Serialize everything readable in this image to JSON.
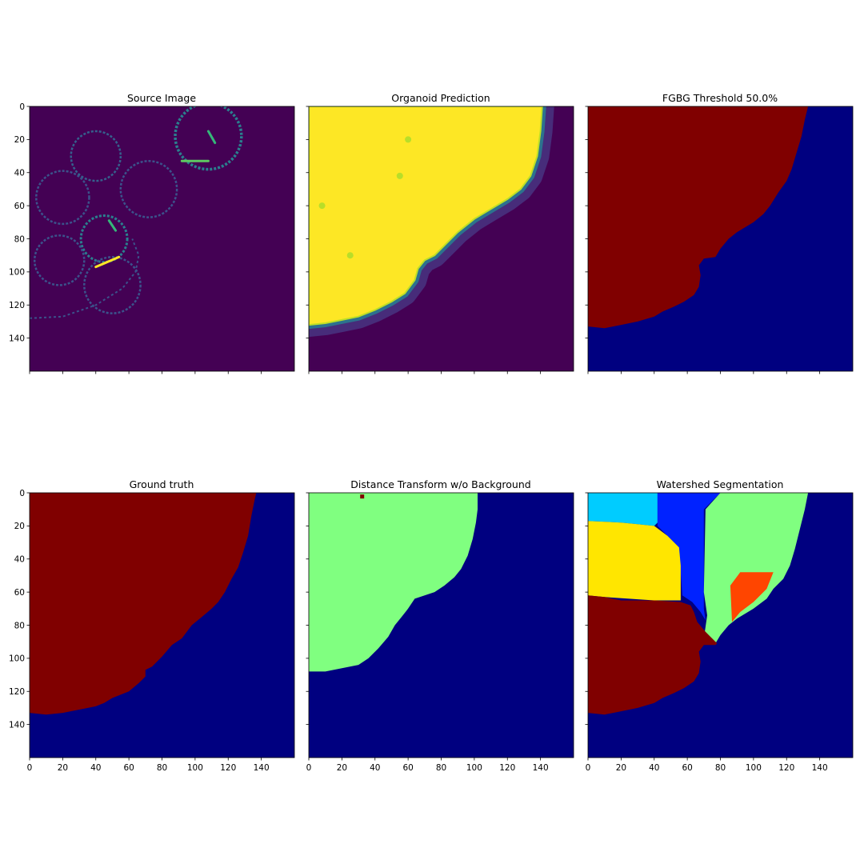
{
  "figure": {
    "panels": [
      {
        "title": "Source Image"
      },
      {
        "title": "Organoid Prediction"
      },
      {
        "title": "FGBG Threshold 50.0%"
      },
      {
        "title": "Ground truth"
      },
      {
        "title": "Distance Transform w/o Background"
      },
      {
        "title": "Watershed Segmentation"
      }
    ]
  },
  "chart_data": [
    {
      "type": "heatmap",
      "title": "Source Image",
      "colormap": "viridis",
      "xlim": [
        0,
        160
      ],
      "ylim": [
        160,
        0
      ],
      "yticks": [
        0,
        20,
        40,
        60,
        80,
        100,
        120,
        140
      ],
      "xticks": [
        0,
        20,
        40,
        60,
        80,
        100,
        120,
        140
      ],
      "ytick_labels_shown": true,
      "xtick_labels_shown": false,
      "description_values": {
        "background": 0.0,
        "cell_boundaries": 0.35,
        "bright_spots": 1.0
      }
    },
    {
      "type": "heatmap",
      "title": "Organoid Prediction",
      "colormap": "viridis",
      "xlim": [
        0,
        160
      ],
      "ylim": [
        160,
        0
      ],
      "yticks": [
        0,
        20,
        40,
        60,
        80,
        100,
        120,
        140
      ],
      "xticks": [
        0,
        20,
        40,
        60,
        80,
        100,
        120,
        140
      ],
      "ytick_labels_shown": false,
      "xtick_labels_shown": false,
      "foreground_boundary": [
        [
          0,
          132
        ],
        [
          10,
          131
        ],
        [
          20,
          129
        ],
        [
          30,
          127
        ],
        [
          40,
          123
        ],
        [
          50,
          118
        ],
        [
          58,
          113
        ],
        [
          64,
          105
        ],
        [
          66,
          98
        ],
        [
          70,
          93
        ],
        [
          76,
          90
        ],
        [
          84,
          82
        ],
        [
          90,
          76
        ],
        [
          100,
          68
        ],
        [
          110,
          62
        ],
        [
          120,
          56
        ],
        [
          128,
          50
        ],
        [
          134,
          42
        ],
        [
          138,
          30
        ],
        [
          140,
          15
        ],
        [
          141,
          0
        ]
      ]
    },
    {
      "type": "heatmap",
      "title": "FGBG Threshold 50.0%",
      "colormap": "jet",
      "xlim": [
        0,
        160
      ],
      "ylim": [
        160,
        0
      ],
      "yticks": [
        0,
        20,
        40,
        60,
        80,
        100,
        120,
        140
      ],
      "xticks": [
        0,
        20,
        40,
        60,
        80,
        100,
        120,
        140
      ],
      "ytick_labels_shown": false,
      "xtick_labels_shown": false,
      "foreground_boundary": [
        [
          0,
          133
        ],
        [
          10,
          134
        ],
        [
          20,
          132
        ],
        [
          30,
          130
        ],
        [
          40,
          127
        ],
        [
          45,
          124
        ],
        [
          52,
          121
        ],
        [
          58,
          118
        ],
        [
          64,
          114
        ],
        [
          67,
          109
        ],
        [
          68,
          102
        ],
        [
          67,
          96
        ],
        [
          70,
          92
        ],
        [
          77,
          91
        ],
        [
          80,
          86
        ],
        [
          85,
          80
        ],
        [
          90,
          76
        ],
        [
          100,
          70
        ],
        [
          106,
          65
        ],
        [
          110,
          60
        ],
        [
          115,
          52
        ],
        [
          120,
          45
        ],
        [
          123,
          38
        ],
        [
          126,
          28
        ],
        [
          129,
          18
        ],
        [
          131,
          8
        ],
        [
          133,
          0
        ]
      ]
    },
    {
      "type": "heatmap",
      "title": "Ground truth",
      "colormap": "jet",
      "xlim": [
        0,
        160
      ],
      "ylim": [
        160,
        0
      ],
      "yticks": [
        0,
        20,
        40,
        60,
        80,
        100,
        120,
        140
      ],
      "xticks": [
        0,
        20,
        40,
        60,
        80,
        100,
        120,
        140
      ],
      "ytick_labels_shown": true,
      "xtick_labels_shown": true,
      "foreground_boundary": [
        [
          0,
          133
        ],
        [
          10,
          134
        ],
        [
          20,
          133
        ],
        [
          30,
          131
        ],
        [
          40,
          129
        ],
        [
          45,
          127
        ],
        [
          50,
          124
        ],
        [
          55,
          122
        ],
        [
          60,
          120
        ],
        [
          66,
          115
        ],
        [
          70,
          111
        ],
        [
          70,
          107
        ],
        [
          74,
          105
        ],
        [
          80,
          99
        ],
        [
          86,
          92
        ],
        [
          92,
          88
        ],
        [
          98,
          80
        ],
        [
          104,
          75
        ],
        [
          110,
          70
        ],
        [
          114,
          66
        ],
        [
          118,
          60
        ],
        [
          122,
          52
        ],
        [
          126,
          45
        ],
        [
          129,
          36
        ],
        [
          132,
          26
        ],
        [
          134,
          14
        ],
        [
          136,
          4
        ],
        [
          137,
          0
        ]
      ]
    },
    {
      "type": "heatmap",
      "title": "Distance Transform w/o Background",
      "colormap": "jet",
      "xlim": [
        0,
        160
      ],
      "ylim": [
        160,
        0
      ],
      "yticks": [
        0,
        20,
        40,
        60,
        80,
        100,
        120,
        140
      ],
      "xticks": [
        0,
        20,
        40,
        60,
        80,
        100,
        120,
        140
      ],
      "ytick_labels_shown": false,
      "xtick_labels_shown": true,
      "foreground_boundary": [
        [
          0,
          108
        ],
        [
          10,
          108
        ],
        [
          20,
          106
        ],
        [
          30,
          104
        ],
        [
          36,
          100
        ],
        [
          42,
          94
        ],
        [
          48,
          87
        ],
        [
          52,
          80
        ],
        [
          56,
          75
        ],
        [
          60,
          70
        ],
        [
          64,
          64
        ],
        [
          70,
          62
        ],
        [
          76,
          60
        ],
        [
          82,
          56
        ],
        [
          88,
          51
        ],
        [
          92,
          46
        ],
        [
          96,
          38
        ],
        [
          99,
          28
        ],
        [
          101,
          18
        ],
        [
          102,
          10
        ],
        [
          102,
          0
        ]
      ],
      "annotation_pixel": [
        32,
        2
      ]
    },
    {
      "type": "heatmap",
      "title": "Watershed Segmentation",
      "colormap": "jet",
      "xlim": [
        0,
        160
      ],
      "ylim": [
        160,
        0
      ],
      "yticks": [
        0,
        20,
        40,
        60,
        80,
        100,
        120,
        140
      ],
      "xticks": [
        0,
        20,
        40,
        60,
        80,
        100,
        120,
        140
      ],
      "ytick_labels_shown": false,
      "xtick_labels_shown": true,
      "segments": [
        {
          "color": "#00ccff",
          "polygon": [
            [
              0,
              0
            ],
            [
              42,
              0
            ],
            [
              42,
              18
            ],
            [
              40,
              20
            ],
            [
              30,
              19
            ],
            [
              20,
              18
            ],
            [
              0,
              17
            ]
          ]
        },
        {
          "color": "#0022ff",
          "polygon": [
            [
              42,
              0
            ],
            [
              80,
              0
            ],
            [
              70,
              10
            ],
            [
              70,
              70
            ],
            [
              71,
              77
            ],
            [
              68,
              72
            ],
            [
              63,
              66
            ],
            [
              57,
              62
            ],
            [
              55,
              33
            ],
            [
              48,
              26
            ],
            [
              42,
              20
            ]
          ]
        },
        {
          "color": "#ffe600",
          "polygon": [
            [
              0,
              17
            ],
            [
              20,
              18
            ],
            [
              30,
              19
            ],
            [
              40,
              20
            ],
            [
              48,
              26
            ],
            [
              55,
              33
            ],
            [
              56,
              44
            ],
            [
              56,
              65
            ],
            [
              40,
              65
            ],
            [
              10,
              63
            ],
            [
              0,
              62
            ]
          ]
        },
        {
          "color": "#80ff80",
          "polygon": [
            [
              80,
              0
            ],
            [
              133,
              0
            ],
            [
              131,
              10
            ],
            [
              128,
              22
            ],
            [
              125,
              34
            ],
            [
              122,
              44
            ],
            [
              118,
              52
            ],
            [
              112,
              58
            ],
            [
              108,
              64
            ],
            [
              100,
              70
            ],
            [
              90,
              76
            ],
            [
              85,
              80
            ],
            [
              80,
              86
            ],
            [
              77,
              91
            ],
            [
              70,
              88
            ],
            [
              72,
              74
            ],
            [
              70,
              60
            ],
            [
              71,
              10
            ]
          ]
        },
        {
          "color": "#ff4500",
          "polygon": [
            [
              87,
              78
            ],
            [
              86,
              56
            ],
            [
              92,
              48
            ],
            [
              112,
              48
            ],
            [
              108,
              58
            ],
            [
              100,
              66
            ],
            [
              92,
              72
            ]
          ]
        },
        {
          "color": "#800000",
          "polygon": [
            [
              0,
              62
            ],
            [
              10,
              63
            ],
            [
              20,
              65
            ],
            [
              40,
              65
            ],
            [
              56,
              66
            ],
            [
              62,
              68
            ],
            [
              64,
              72
            ],
            [
              66,
              78
            ],
            [
              71,
              84
            ],
            [
              74,
              87
            ],
            [
              78,
              91
            ],
            [
              77,
              92
            ],
            [
              70,
              92
            ],
            [
              67,
              96
            ],
            [
              68,
              102
            ],
            [
              67,
              109
            ],
            [
              64,
              114
            ],
            [
              58,
              118
            ],
            [
              52,
              121
            ],
            [
              45,
              124
            ],
            [
              40,
              127
            ],
            [
              30,
              130
            ],
            [
              20,
              132
            ],
            [
              10,
              134
            ],
            [
              0,
              133
            ]
          ]
        }
      ],
      "background_color": "#000080"
    }
  ]
}
